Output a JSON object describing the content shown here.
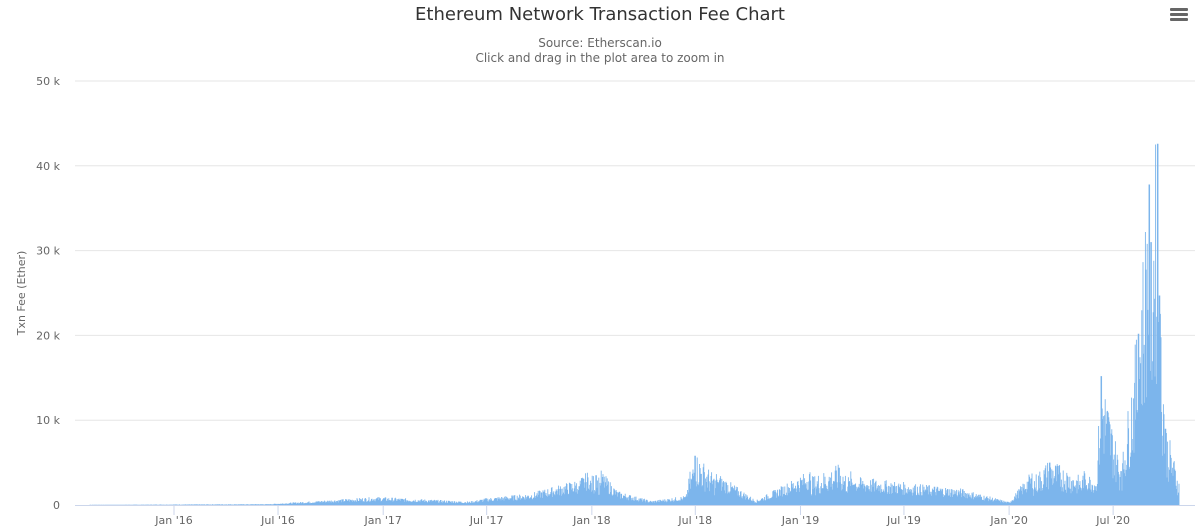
{
  "header": {
    "title": "Ethereum Network Transaction Fee Chart",
    "subtitle_source": "Source: Etherscan.io",
    "subtitle_hint": "Click and drag in the plot area to zoom in",
    "menu_icon": "hamburger-menu-icon"
  },
  "colors": {
    "bar": "#7cb5ec",
    "grid": "#e6e6e6",
    "axis": "#ccd6eb",
    "text": "#666666",
    "title": "#333333"
  },
  "chart_data": {
    "type": "bar",
    "title": "Ethereum Network Transaction Fee Chart",
    "subtitle": "Source: Etherscan.io",
    "xlabel": "",
    "ylabel": "Txn Fee (Ether)",
    "ylim": [
      0,
      50000
    ],
    "yticks": [
      "0",
      "10 k",
      "20 k",
      "30 k",
      "40 k",
      "50 k"
    ],
    "xticks": [
      "Jan '16",
      "Jul '16",
      "Jan '17",
      "Jul '17",
      "Jan '18",
      "Jul '18",
      "Jan '19",
      "Jul '19",
      "Jan '20",
      "Jul '20"
    ],
    "grid": true,
    "legend": false,
    "x_range": [
      "2015-08-07",
      "2020-10-25"
    ],
    "anchor_points": [
      {
        "date": "2015-08-07",
        "value": 20
      },
      {
        "date": "2016-03-01",
        "value": 60
      },
      {
        "date": "2016-06-15",
        "value": 80
      },
      {
        "date": "2016-12-20",
        "value": 700
      },
      {
        "date": "2017-06-01",
        "value": 300
      },
      {
        "date": "2017-07-01",
        "value": 600
      },
      {
        "date": "2017-09-15",
        "value": 1000
      },
      {
        "date": "2017-12-10",
        "value": 2200
      },
      {
        "date": "2018-01-08",
        "value": 3500
      },
      {
        "date": "2018-02-15",
        "value": 1200
      },
      {
        "date": "2018-04-15",
        "value": 350
      },
      {
        "date": "2018-06-15",
        "value": 800
      },
      {
        "date": "2018-07-01",
        "value": 5800
      },
      {
        "date": "2018-08-10",
        "value": 2700
      },
      {
        "date": "2018-10-15",
        "value": 400
      },
      {
        "date": "2019-03-10",
        "value": 4400
      },
      {
        "date": "2019-04-05",
        "value": 2400
      },
      {
        "date": "2019-10-10",
        "value": 1400
      },
      {
        "date": "2020-01-01",
        "value": 250
      },
      {
        "date": "2020-03-12",
        "value": 5000
      },
      {
        "date": "2020-06-01",
        "value": 2200
      },
      {
        "date": "2020-06-10",
        "value": 15200
      },
      {
        "date": "2020-07-15",
        "value": 4000
      },
      {
        "date": "2020-08-14",
        "value": 20200
      },
      {
        "date": "2020-09-02",
        "value": 37800
      },
      {
        "date": "2020-09-05",
        "value": 31000
      },
      {
        "date": "2020-09-17",
        "value": 42600
      },
      {
        "date": "2020-09-20",
        "value": 24700
      },
      {
        "date": "2020-10-01",
        "value": 9000
      },
      {
        "date": "2020-10-25",
        "value": 2500
      }
    ]
  }
}
